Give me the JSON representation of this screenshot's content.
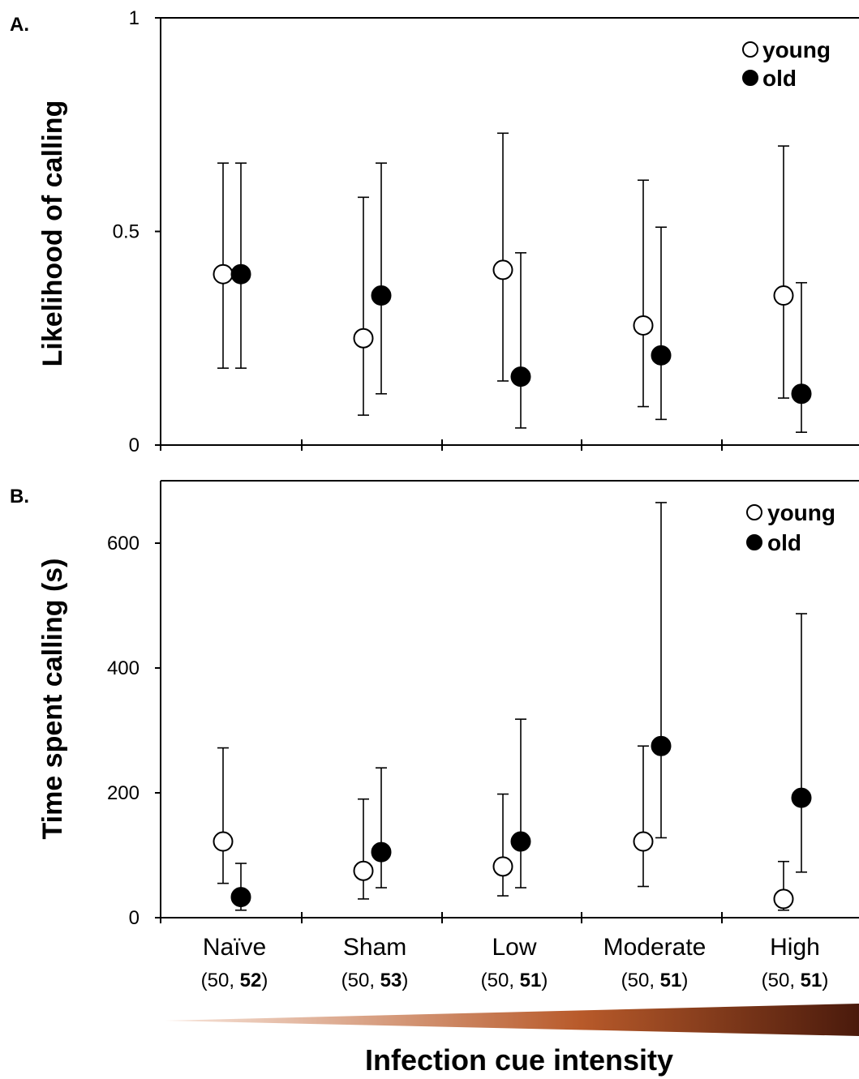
{
  "chart_data": [
    {
      "type": "scatter",
      "panel": "A.",
      "ylabel": "Likelihood of calling",
      "ylim": [
        0,
        1
      ],
      "yticks": [
        "0",
        "0.5",
        "1"
      ],
      "categories": [
        "Naïve",
        "Sham",
        "Low",
        "Moderate",
        "High"
      ],
      "sample_sizes": [
        {
          "young": "50",
          "old": "52"
        },
        {
          "young": "50",
          "old": "53"
        },
        {
          "young": "50",
          "old": "51"
        },
        {
          "young": "50",
          "old": "51"
        },
        {
          "young": "50",
          "old": "51"
        }
      ],
      "legend": [
        "young",
        "old"
      ],
      "series": [
        {
          "name": "young",
          "values": [
            0.4,
            0.25,
            0.41,
            0.28,
            0.35
          ],
          "err_low": [
            0.18,
            0.07,
            0.15,
            0.09,
            0.11
          ],
          "err_high": [
            0.66,
            0.58,
            0.73,
            0.62,
            0.7
          ]
        },
        {
          "name": "old",
          "values": [
            0.4,
            0.35,
            0.16,
            0.21,
            0.12
          ],
          "err_low": [
            0.18,
            0.12,
            0.04,
            0.06,
            0.03
          ],
          "err_high": [
            0.66,
            0.66,
            0.45,
            0.51,
            0.38
          ]
        }
      ]
    },
    {
      "type": "scatter",
      "panel": "B.",
      "ylabel": "Time spent calling (s)",
      "ylim": [
        0,
        700
      ],
      "yticks": [
        "0",
        "200",
        "400",
        "600"
      ],
      "categories": [
        "Naïve",
        "Sham",
        "Low",
        "Moderate",
        "High"
      ],
      "legend": [
        "young",
        "old"
      ],
      "series": [
        {
          "name": "young",
          "values": [
            122,
            75,
            82,
            122,
            30
          ],
          "err_low": [
            55,
            30,
            35,
            50,
            12
          ],
          "err_high": [
            272,
            190,
            198,
            275,
            90
          ]
        },
        {
          "name": "old",
          "values": [
            33,
            105,
            122,
            275,
            192
          ],
          "err_low": [
            12,
            48,
            48,
            128,
            73
          ],
          "err_high": [
            87,
            240,
            318,
            665,
            487
          ]
        }
      ]
    }
  ],
  "xlabel": "Infection cue intensity",
  "colors": {
    "gradient_start": "#f8e6dc",
    "gradient_mid": "#b85a2a",
    "gradient_end": "#4a1a0c"
  }
}
